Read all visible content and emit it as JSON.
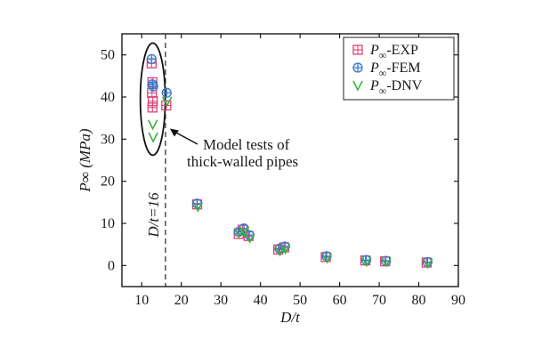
{
  "chart_data": {
    "type": "scatter",
    "xlabel": "D/t",
    "ylabel": "P∞ (MPa)",
    "xlim": [
      5,
      90
    ],
    "ylim": [
      -5,
      55
    ],
    "xticks": [
      10,
      20,
      30,
      40,
      50,
      60,
      70,
      80,
      90
    ],
    "yticks": [
      0,
      10,
      20,
      30,
      40,
      50
    ],
    "grid": false,
    "legend_position": "top-right",
    "colors": {
      "exp": "#e0407a",
      "fem": "#3a78c8",
      "dnv": "#3cb43c",
      "axis": "#1a1a1a"
    },
    "series": [
      {
        "name": "P∞-EXP",
        "label_main": "P",
        "label_sub": "∞",
        "label_rest": "-EXP",
        "marker": "square-cross",
        "points": [
          {
            "x": 12.5,
            "y": 48
          },
          {
            "x": 12.7,
            "y": 43.5
          },
          {
            "x": 12.6,
            "y": 41
          },
          {
            "x": 12.8,
            "y": 39
          },
          {
            "x": 12.7,
            "y": 37.5
          },
          {
            "x": 16.2,
            "y": 38
          },
          {
            "x": 24,
            "y": 14.5
          },
          {
            "x": 34.5,
            "y": 7.5
          },
          {
            "x": 35.5,
            "y": 8.5
          },
          {
            "x": 37,
            "y": 7
          },
          {
            "x": 44.5,
            "y": 3.8
          },
          {
            "x": 46,
            "y": 4.3
          },
          {
            "x": 56.5,
            "y": 2
          },
          {
            "x": 66.5,
            "y": 1.2
          },
          {
            "x": 71.5,
            "y": 1
          },
          {
            "x": 82,
            "y": 0.7
          }
        ]
      },
      {
        "name": "P∞-FEM",
        "label_main": "P",
        "label_sub": "∞",
        "label_rest": "-FEM",
        "marker": "circle-cross",
        "points": [
          {
            "x": 12.5,
            "y": 49
          },
          {
            "x": 12.7,
            "y": 43
          },
          {
            "x": 12.9,
            "y": 42.5
          },
          {
            "x": 16.3,
            "y": 41
          },
          {
            "x": 24,
            "y": 14.7
          },
          {
            "x": 34.5,
            "y": 8
          },
          {
            "x": 35.8,
            "y": 8.8
          },
          {
            "x": 37.2,
            "y": 7.2
          },
          {
            "x": 44.8,
            "y": 4
          },
          {
            "x": 46.2,
            "y": 4.5
          },
          {
            "x": 56.7,
            "y": 2.2
          },
          {
            "x": 66.7,
            "y": 1.3
          },
          {
            "x": 71.7,
            "y": 1.1
          },
          {
            "x": 82.2,
            "y": 0.8
          }
        ]
      },
      {
        "name": "P∞-DNV",
        "label_main": "P",
        "label_sub": "∞",
        "label_rest": "-DNV",
        "marker": "v",
        "points": [
          {
            "x": 12.8,
            "y": 33.5
          },
          {
            "x": 12.9,
            "y": 30.5
          },
          {
            "x": 16.4,
            "y": 39
          },
          {
            "x": 24.2,
            "y": 14
          },
          {
            "x": 34.6,
            "y": 7.8
          },
          {
            "x": 35.9,
            "y": 8.2
          },
          {
            "x": 37.3,
            "y": 6.6
          },
          {
            "x": 44.9,
            "y": 3.5
          },
          {
            "x": 46.3,
            "y": 4
          },
          {
            "x": 56.8,
            "y": 1.8
          },
          {
            "x": 66.8,
            "y": 1
          },
          {
            "x": 71.8,
            "y": 0.9
          },
          {
            "x": 82.3,
            "y": 0.6
          }
        ]
      }
    ],
    "reference_line": {
      "x": 16,
      "label": "D/t=16"
    },
    "annotation": {
      "line1": "Model tests of",
      "line2": "thick-walled pipes"
    }
  }
}
